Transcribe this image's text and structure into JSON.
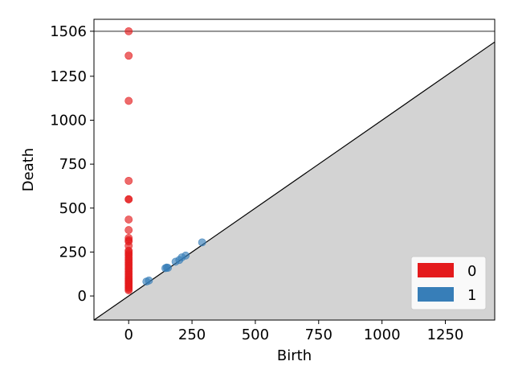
{
  "chart_data": {
    "type": "scatter",
    "title": "",
    "xlabel": "Birth",
    "ylabel": "Death",
    "xlim": [
      -137,
      1445
    ],
    "ylim": [
      -137,
      1574
    ],
    "xticks": [
      0,
      250,
      500,
      750,
      1000,
      1250
    ],
    "yticks": [
      0,
      250,
      500,
      750,
      1000,
      1250,
      1506
    ],
    "infinity_line": 1506,
    "diagonal": true,
    "legend_position": "lower-right",
    "grid": false,
    "series": [
      {
        "name": "0",
        "color": "#e41a1c",
        "points": [
          [
            0,
            1506
          ],
          [
            0,
            1367
          ],
          [
            0,
            1110
          ],
          [
            0,
            655
          ],
          [
            0,
            550
          ],
          [
            0,
            550
          ],
          [
            0,
            435
          ],
          [
            0,
            375
          ],
          [
            0,
            330
          ],
          [
            0,
            318
          ],
          [
            0,
            310
          ],
          [
            0,
            285
          ],
          [
            0,
            258
          ],
          [
            0,
            250
          ],
          [
            0,
            240
          ],
          [
            0,
            232
          ],
          [
            0,
            220
          ],
          [
            0,
            210
          ],
          [
            0,
            200
          ],
          [
            0,
            190
          ],
          [
            0,
            180
          ],
          [
            0,
            170
          ],
          [
            0,
            160
          ],
          [
            0,
            150
          ],
          [
            0,
            140
          ],
          [
            0,
            130
          ],
          [
            0,
            120
          ],
          [
            0,
            110
          ],
          [
            0,
            100
          ],
          [
            0,
            92
          ],
          [
            0,
            85
          ],
          [
            0,
            78
          ],
          [
            0,
            70
          ],
          [
            0,
            62
          ],
          [
            0,
            55
          ],
          [
            0,
            48
          ],
          [
            0,
            40
          ],
          [
            0,
            32
          ]
        ]
      },
      {
        "name": "1",
        "color": "#377eb8",
        "points": [
          [
            70,
            82
          ],
          [
            80,
            88
          ],
          [
            145,
            158
          ],
          [
            150,
            162
          ],
          [
            155,
            160
          ],
          [
            185,
            195
          ],
          [
            200,
            205
          ],
          [
            210,
            220
          ],
          [
            225,
            230
          ],
          [
            290,
            305
          ]
        ]
      }
    ]
  }
}
